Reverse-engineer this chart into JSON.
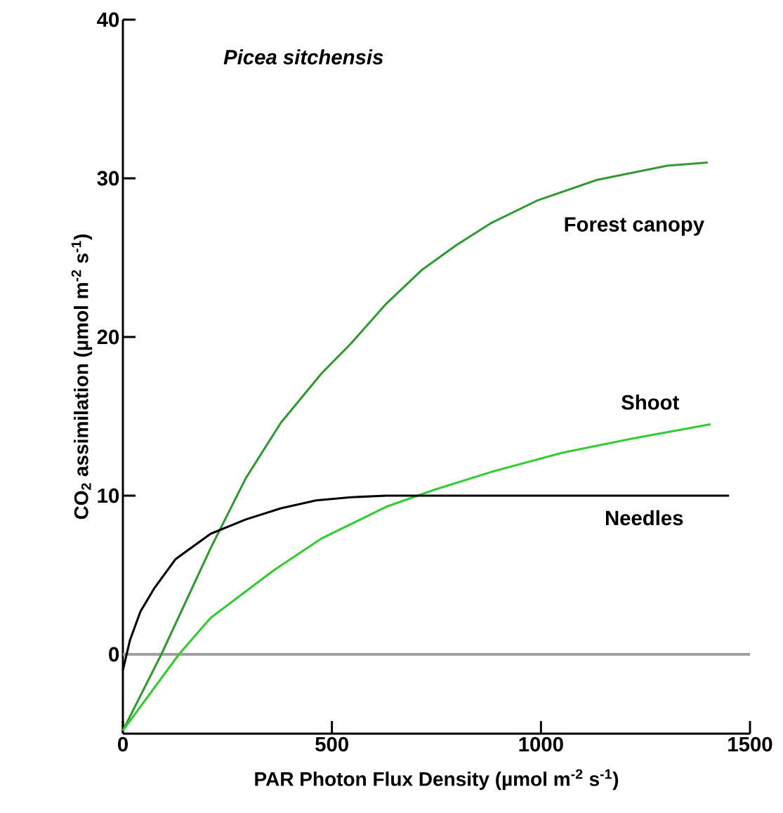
{
  "chart_data": {
    "type": "line",
    "title": "Picea sitchensis",
    "xlabel": "PAR Photon Flux Density  (µmol m$^{-2}$ s$^{-1}$)",
    "ylabel": "CO$_{2}$ assimilation (µmol m$^{-2}$ s$^{-1}$)",
    "xlim": [
      0,
      1500
    ],
    "ylim": [
      -5,
      40
    ],
    "xticks": [
      0,
      500,
      1000,
      1500
    ],
    "yticks": [
      0,
      10,
      20,
      30,
      40
    ],
    "ref_lines": [
      {
        "axis": "y",
        "value": 0,
        "color": "#a0a0a0"
      }
    ],
    "series": [
      {
        "name": "Forest canopy",
        "color": "#339933",
        "x": [
          0,
          92,
          210,
          294,
          378,
          475,
          546,
          630,
          714,
          798,
          882,
          991,
          1134,
          1302,
          1399
        ],
        "values": [
          -4.8,
          0,
          6.7,
          11.1,
          14.6,
          17.7,
          19.6,
          22.1,
          24.2,
          25.8,
          27.2,
          28.6,
          29.9,
          30.8,
          31.0
        ]
      },
      {
        "name": "Shoot",
        "color": "#33cc33",
        "x": [
          0,
          134,
          210,
          361,
          475,
          630,
          748,
          882,
          1050,
          1218,
          1406
        ],
        "values": [
          -4.8,
          0,
          2.3,
          5.3,
          7.3,
          9.3,
          10.4,
          11.5,
          12.7,
          13.6,
          14.5
        ]
      },
      {
        "name": "Needles",
        "color": "#000000",
        "x": [
          0,
          17,
          42,
          76,
          126,
          210,
          294,
          378,
          462,
          546,
          630,
          1450
        ],
        "values": [
          -1.0,
          0.9,
          2.7,
          4.2,
          6.0,
          7.6,
          8.5,
          9.2,
          9.7,
          9.9,
          10,
          10
        ]
      }
    ]
  }
}
